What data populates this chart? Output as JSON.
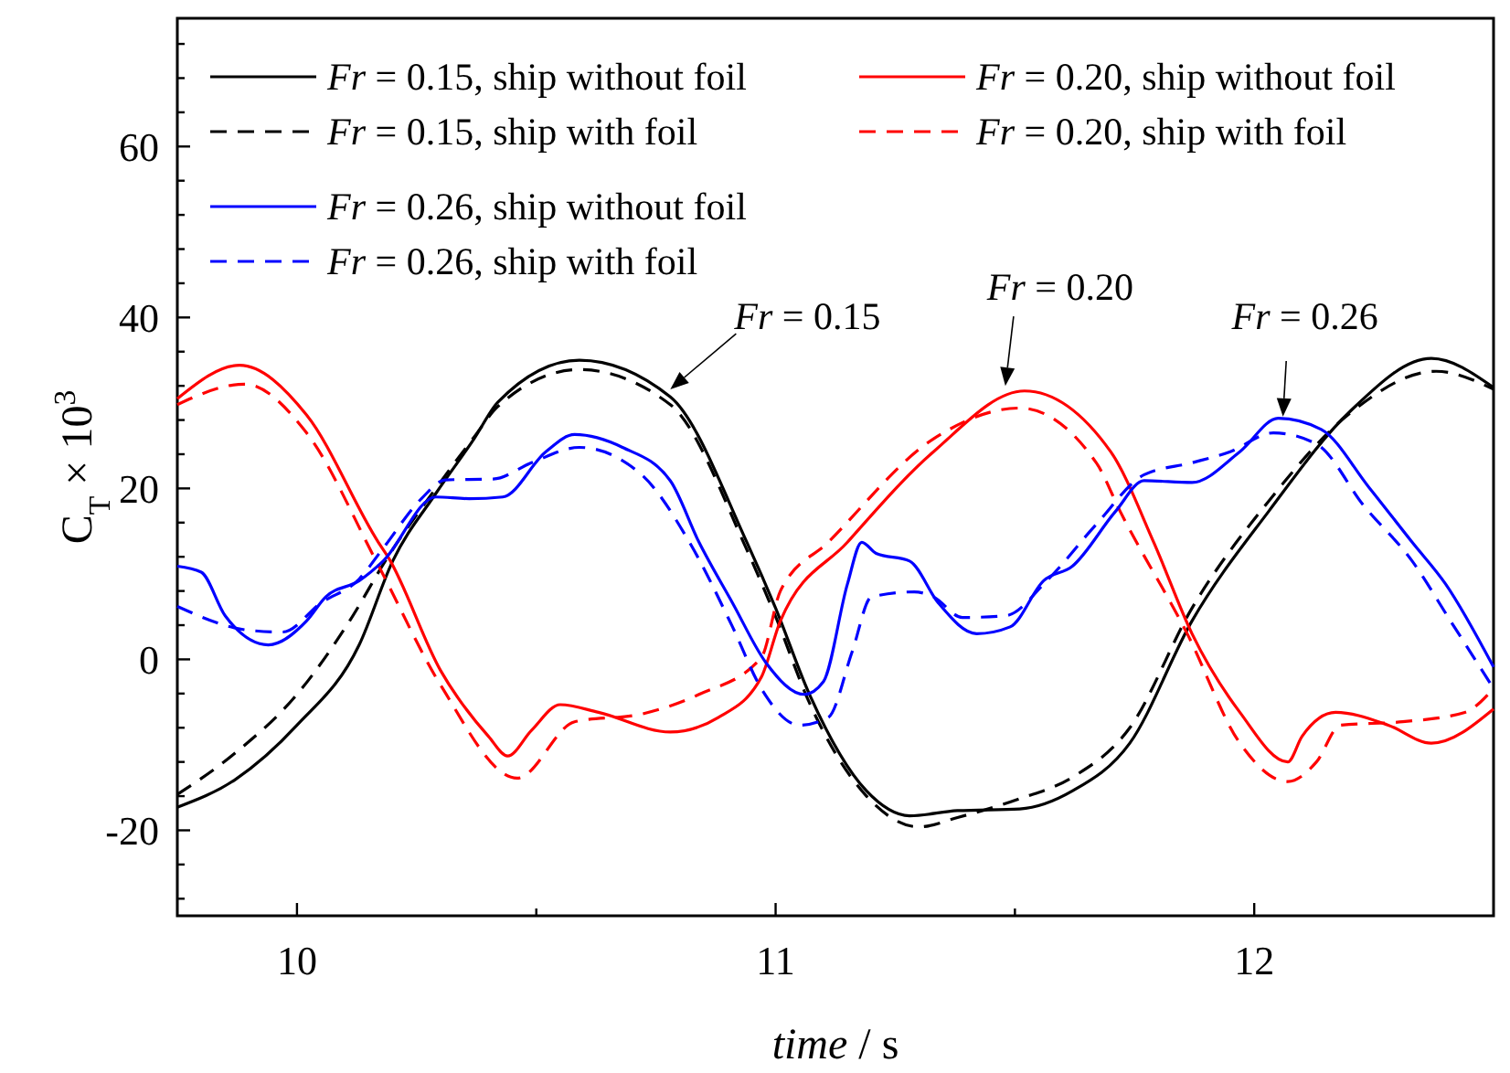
{
  "chart_data": {
    "type": "line",
    "xlabel": "time / s",
    "ylabel": "C$_{T}$ × 10$^{3}$",
    "xlim": [
      9.75,
      12.5
    ],
    "ylim": [
      -30,
      75
    ],
    "xticks": [
      10,
      {
        "value": 10.5,
        "label": null
      },
      11,
      {
        "value": 11.5,
        "label": null
      },
      12
    ],
    "yticks": [
      {
        "value": -28,
        "label": null
      },
      {
        "value": -24,
        "label": null
      },
      -20,
      {
        "value": -16,
        "label": null
      },
      {
        "value": -12,
        "label": null
      },
      {
        "value": -8,
        "label": null
      },
      {
        "value": -4,
        "label": null
      },
      0,
      {
        "value": 4,
        "label": null
      },
      {
        "value": 8,
        "label": null
      },
      {
        "value": 12,
        "label": null
      },
      {
        "value": 16,
        "label": null
      },
      20,
      {
        "value": 24,
        "label": null
      },
      {
        "value": 28,
        "label": null
      },
      {
        "value": 32,
        "label": null
      },
      {
        "value": 36,
        "label": null
      },
      40,
      {
        "value": 44,
        "label": null
      },
      {
        "value": 48,
        "label": null
      },
      {
        "value": 52,
        "label": null
      },
      {
        "value": 56,
        "label": null
      },
      60,
      {
        "value": 64,
        "label": null
      },
      {
        "value": 68,
        "label": null
      },
      {
        "value": 72,
        "label": null
      }
    ],
    "legend": "top",
    "grid": false,
    "series": [
      {
        "name": "Fr = 0.15, ship without foil",
        "color": "#000000",
        "line_style": "solid",
        "x": [
          9.75,
          9.87,
          10.0,
          10.13,
          10.2,
          10.29,
          10.37,
          10.42,
          10.59,
          10.78,
          10.94,
          11.0,
          11.07,
          11.19,
          11.28,
          11.38,
          11.51,
          11.62,
          11.74,
          11.87,
          12.03,
          12.2,
          12.37,
          12.5
        ],
        "values": [
          -17.3,
          -14.1,
          -7.7,
          1.7,
          11.5,
          19.4,
          25.8,
          30.1,
          35,
          30.7,
          13.7,
          6,
          -4,
          -15.4,
          -18.3,
          -17.7,
          -17.5,
          -15.4,
          -9.8,
          4.5,
          17.3,
          29,
          35.2,
          31.8
        ]
      },
      {
        "name": "Fr = 0.15, ship with foil",
        "color": "#000000",
        "line_style": "dashed",
        "x": [
          9.75,
          9.87,
          10.0,
          10.11,
          10.19,
          10.29,
          10.37,
          10.42,
          10.59,
          10.78,
          10.94,
          11.0,
          11.07,
          11.19,
          11.3,
          11.38,
          11.51,
          11.62,
          11.74,
          11.87,
          12.03,
          12.2,
          12.38,
          12.5
        ],
        "values": [
          -15.8,
          -11,
          -4.1,
          4.5,
          12,
          20,
          26,
          29.6,
          33.9,
          29.8,
          12.8,
          5,
          -5,
          -16,
          -19.6,
          -18.5,
          -16.3,
          -13.8,
          -8,
          6,
          18.5,
          28.8,
          33.7,
          31.6
        ]
      },
      {
        "name": "Fr = 0.20, ship without foil",
        "color": "#ff0000",
        "line_style": "solid",
        "x": [
          9.75,
          9.88,
          10.02,
          10.17,
          10.19,
          10.3,
          10.4,
          10.44,
          10.49,
          10.55,
          10.63,
          10.78,
          10.88,
          10.97,
          11.01,
          11.15,
          11.33,
          11.52,
          11.7,
          11.79,
          11.87,
          11.97,
          12.07,
          12.1,
          12.17,
          12.28,
          12.37,
          12.5
        ],
        "values": [
          30.5,
          34.4,
          28.6,
          13.7,
          12,
          -1.3,
          -9,
          -11.3,
          -8.3,
          -5.3,
          -6.2,
          -8.5,
          -6.8,
          -2.1,
          4.5,
          13.7,
          24.3,
          31.4,
          24.3,
          13.7,
          3,
          -6.2,
          -12,
          -9,
          -6.2,
          -7.7,
          -9.8,
          -5.8
        ]
      },
      {
        "name": "Fr = 0.20, ship with foil",
        "color": "#ff0000",
        "line_style": "dashed",
        "x": [
          9.75,
          9.89,
          10.02,
          10.17,
          10.3,
          10.46,
          10.58,
          10.72,
          10.84,
          10.97,
          11.01,
          11.11,
          11.33,
          11.51,
          11.67,
          11.72,
          11.86,
          11.97,
          12.07,
          12.13,
          12.18,
          12.31,
          12.44,
          12.5
        ],
        "values": [
          29.8,
          32.2,
          26.5,
          11,
          -3,
          -13.9,
          -7.3,
          -6.4,
          -4.1,
          0.2,
          8,
          13.7,
          25.8,
          29.4,
          23,
          17.3,
          3,
          -9.8,
          -14.3,
          -12,
          -7.7,
          -7.3,
          -6.2,
          -3.4
        ]
      },
      {
        "name": "Fr = 0.26, ship without foil",
        "color": "#0000ff",
        "line_style": "solid",
        "x": [
          9.75,
          9.8,
          9.85,
          9.94,
          10.02,
          10.06,
          10.13,
          10.18,
          10.29,
          10.36,
          10.43,
          10.52,
          10.58,
          10.68,
          10.78,
          10.84,
          10.91,
          10.98,
          11.06,
          11.1,
          11.15,
          11.18,
          11.21,
          11.28,
          11.34,
          11.42,
          11.49,
          11.56,
          11.62,
          11.71,
          11.77,
          11.87,
          11.97,
          12.05,
          12.14,
          12.24,
          12.33,
          12.4,
          12.5
        ],
        "values": [
          10.9,
          10.2,
          5.1,
          1.7,
          4.5,
          7.3,
          9.2,
          11.5,
          19,
          18.8,
          19,
          24.3,
          26.3,
          24.8,
          20.9,
          13.7,
          6.6,
          -0.4,
          -4.1,
          -2.6,
          8.8,
          13.7,
          12.4,
          11.5,
          6.6,
          3,
          3.8,
          9.2,
          10.9,
          17.3,
          20.9,
          20.7,
          24.3,
          28.2,
          26.9,
          20.1,
          13.7,
          8.8,
          -0.9
        ]
      },
      {
        "name": "Fr = 0.26, ship with foil",
        "color": "#0000ff",
        "line_style": "dashed",
        "x": [
          9.75,
          9.9,
          9.97,
          10.05,
          10.13,
          10.18,
          10.26,
          10.31,
          10.41,
          10.49,
          10.59,
          10.72,
          10.82,
          10.91,
          10.97,
          11.05,
          11.11,
          11.16,
          11.2,
          11.29,
          11.33,
          11.39,
          11.48,
          11.57,
          11.67,
          11.77,
          11.87,
          11.95,
          12.04,
          12.13,
          12.23,
          12.33,
          12.41,
          12.5
        ],
        "values": [
          6.2,
          3.4,
          3.2,
          6.6,
          9.4,
          13,
          18.8,
          21,
          21.1,
          23,
          24.8,
          21.6,
          13.7,
          3.8,
          -3.4,
          -7.7,
          -6.8,
          0.9,
          7.3,
          7.9,
          7.3,
          4.9,
          5.1,
          9.4,
          15.8,
          21.6,
          23,
          24.3,
          26.5,
          25.2,
          17.9,
          11.5,
          4.5,
          -3.4
        ]
      }
    ],
    "annotations": [
      {
        "text": "Fr = 0.15",
        "x": 10.78,
        "y": 31.6
      },
      {
        "text": "Fr = 0.20",
        "x": 11.48,
        "y": 32
      },
      {
        "text": "Fr = 0.26",
        "x": 12.06,
        "y": 28.4
      }
    ]
  }
}
